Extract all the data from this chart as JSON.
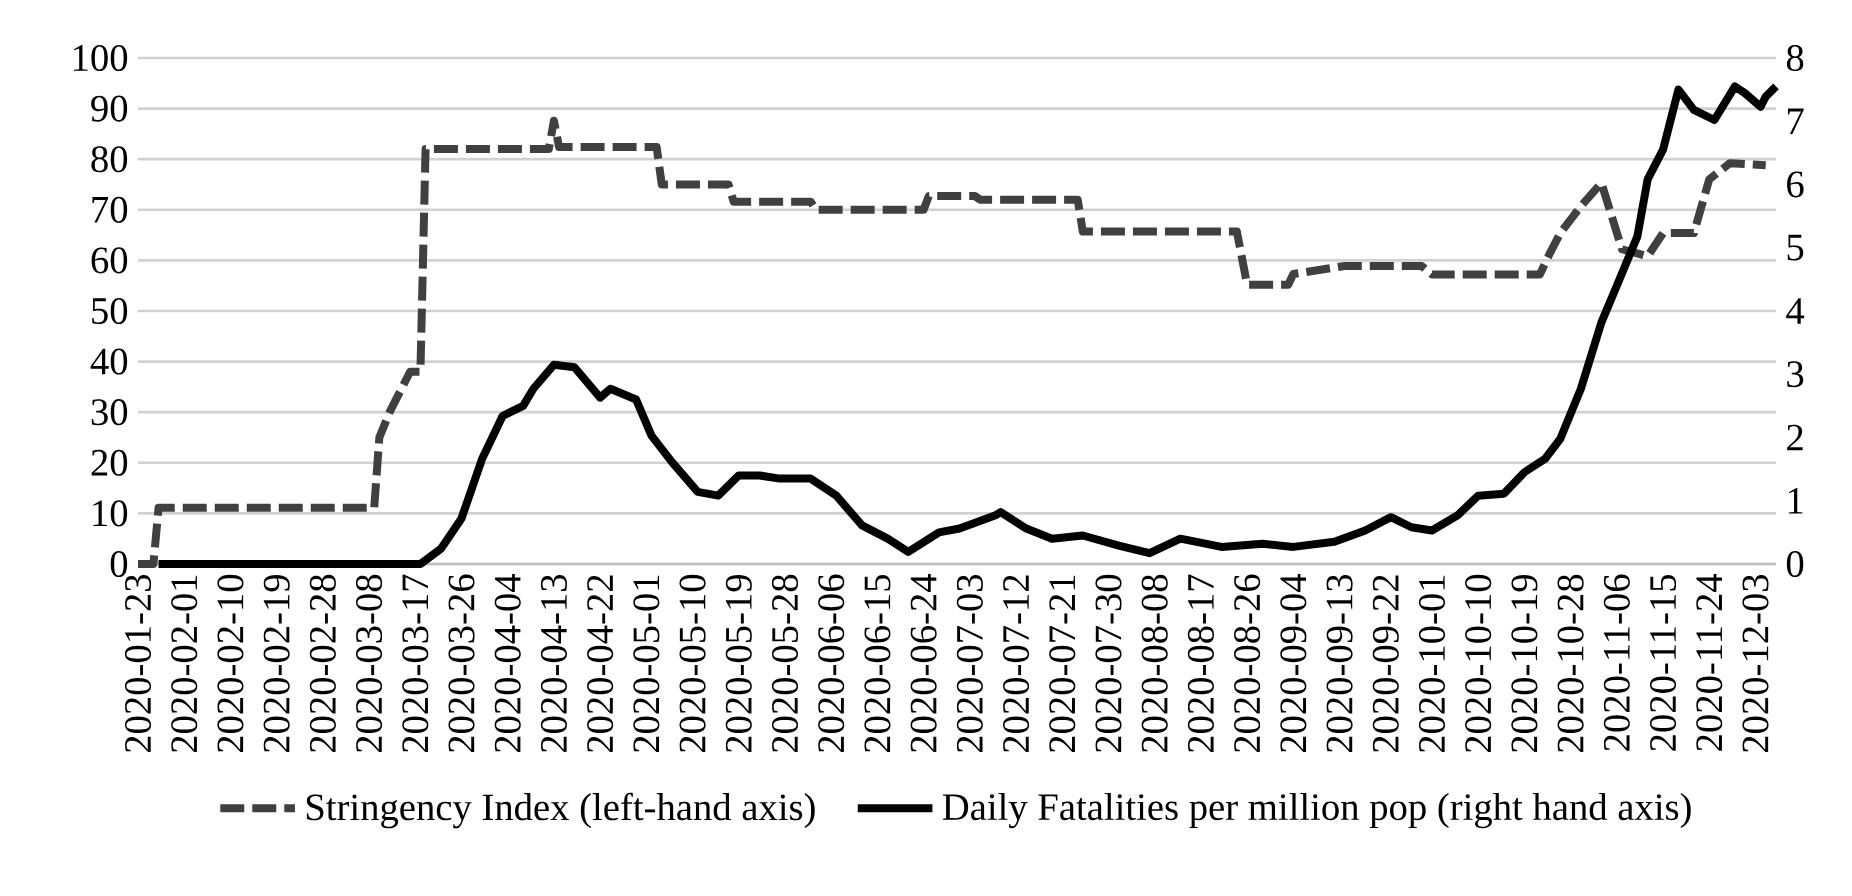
{
  "chart_data": {
    "type": "line",
    "grid": "y",
    "legend": "bottom",
    "xlim": [
      "2020-01-23",
      "2020-12-07"
    ],
    "xticks": [
      "2020-01-23",
      "2020-02-01",
      "2020-02-10",
      "2020-02-19",
      "2020-02-28",
      "2020-03-08",
      "2020-03-17",
      "2020-03-26",
      "2020-04-04",
      "2020-04-13",
      "2020-04-22",
      "2020-05-01",
      "2020-05-10",
      "2020-05-19",
      "2020-05-28",
      "2020-06-06",
      "2020-06-15",
      "2020-06-24",
      "2020-07-03",
      "2020-07-12",
      "2020-07-21",
      "2020-07-30",
      "2020-08-08",
      "2020-08-17",
      "2020-08-26",
      "2020-09-04",
      "2020-09-13",
      "2020-09-22",
      "2020-10-01",
      "2020-10-10",
      "2020-10-19",
      "2020-10-28",
      "2020-11-06",
      "2020-11-15",
      "2020-11-24",
      "2020-12-03"
    ],
    "ylim": [
      0,
      100
    ],
    "yticks": [
      0,
      10,
      20,
      30,
      40,
      50,
      60,
      70,
      80,
      90,
      100
    ],
    "y2lim": [
      0,
      8
    ],
    "y2ticks": [
      0,
      1,
      2,
      3,
      4,
      5,
      6,
      7,
      8
    ],
    "series": [
      {
        "name": "Stringency Index (left-hand axis)",
        "color": "#404040",
        "line_style": "dashed",
        "x": [
          "2020-01-23",
          "2020-01-26",
          "2020-01-27",
          "2020-03-09",
          "2020-03-10",
          "2020-03-12",
          "2020-03-16",
          "2020-03-18",
          "2020-03-19",
          "2020-04-12",
          "2020-04-13",
          "2020-04-14",
          "2020-05-03",
          "2020-05-04",
          "2020-05-17",
          "2020-05-18",
          "2020-06-02",
          "2020-06-03",
          "2020-06-24",
          "2020-06-25",
          "2020-07-04",
          "2020-07-05",
          "2020-07-24",
          "2020-07-25",
          "2020-08-24",
          "2020-08-26",
          "2020-09-03",
          "2020-09-04",
          "2020-09-14",
          "2020-09-29",
          "2020-10-01",
          "2020-10-22",
          "2020-10-24",
          "2020-10-26",
          "2020-10-30",
          "2020-11-03",
          "2020-11-07",
          "2020-11-12",
          "2020-11-15",
          "2020-11-21",
          "2020-11-24",
          "2020-11-28",
          "2020-12-05"
        ],
        "values": [
          0,
          0,
          11.1,
          11.1,
          25,
          30,
          38,
          38,
          82,
          82,
          87.6,
          82.4,
          82.4,
          75,
          75,
          71.6,
          71.6,
          70,
          70,
          72.7,
          72.7,
          72,
          72,
          65.7,
          65.7,
          55.2,
          55.2,
          57.3,
          58.9,
          58.9,
          57.2,
          57.2,
          61.5,
          65.4,
          70.7,
          75.3,
          62.2,
          60.8,
          65.4,
          65.4,
          76,
          79.2,
          78.8
        ]
      },
      {
        "name": "Daily Fatalities per million pop  (right hand axis)",
        "color": "#000000",
        "line_style": "solid",
        "axis": "y2",
        "x": [
          "2020-01-27",
          "2020-03-18",
          "2020-03-22",
          "2020-03-26",
          "2020-03-30",
          "2020-04-03",
          "2020-04-07",
          "2020-04-09",
          "2020-04-13",
          "2020-04-17",
          "2020-04-22",
          "2020-04-24",
          "2020-04-29",
          "2020-05-02",
          "2020-05-06",
          "2020-05-11",
          "2020-05-15",
          "2020-05-19",
          "2020-05-23",
          "2020-05-27",
          "2020-06-02",
          "2020-06-07",
          "2020-06-12",
          "2020-06-17",
          "2020-06-21",
          "2020-06-27",
          "2020-07-01",
          "2020-07-08",
          "2020-07-09",
          "2020-07-14",
          "2020-07-19",
          "2020-07-25",
          "2020-08-01",
          "2020-08-07",
          "2020-08-13",
          "2020-08-21",
          "2020-08-29",
          "2020-09-04",
          "2020-09-12",
          "2020-09-18",
          "2020-09-23",
          "2020-09-27",
          "2020-10-01",
          "2020-10-06",
          "2020-10-10",
          "2020-10-15",
          "2020-10-19",
          "2020-10-23",
          "2020-10-26",
          "2020-10-30",
          "2020-11-03",
          "2020-11-06",
          "2020-11-10",
          "2020-11-12",
          "2020-11-15",
          "2020-11-18",
          "2020-11-21",
          "2020-11-25",
          "2020-11-29",
          "2020-12-01",
          "2020-12-04",
          "2020-12-05",
          "2020-12-07"
        ],
        "values": [
          0,
          0,
          0.24,
          0.72,
          1.66,
          2.34,
          2.5,
          2.77,
          3.15,
          3.11,
          2.63,
          2.77,
          2.6,
          2.03,
          1.61,
          1.14,
          1.08,
          1.4,
          1.4,
          1.35,
          1.35,
          1.08,
          0.61,
          0.4,
          0.19,
          0.5,
          0.56,
          0.77,
          0.82,
          0.56,
          0.4,
          0.45,
          0.29,
          0.17,
          0.4,
          0.27,
          0.32,
          0.27,
          0.35,
          0.53,
          0.74,
          0.58,
          0.53,
          0.77,
          1.08,
          1.11,
          1.45,
          1.66,
          1.98,
          2.77,
          3.82,
          4.4,
          5.18,
          6.08,
          6.55,
          7.5,
          7.18,
          7.02,
          7.55,
          7.44,
          7.23,
          7.39,
          7.55
        ]
      }
    ]
  }
}
